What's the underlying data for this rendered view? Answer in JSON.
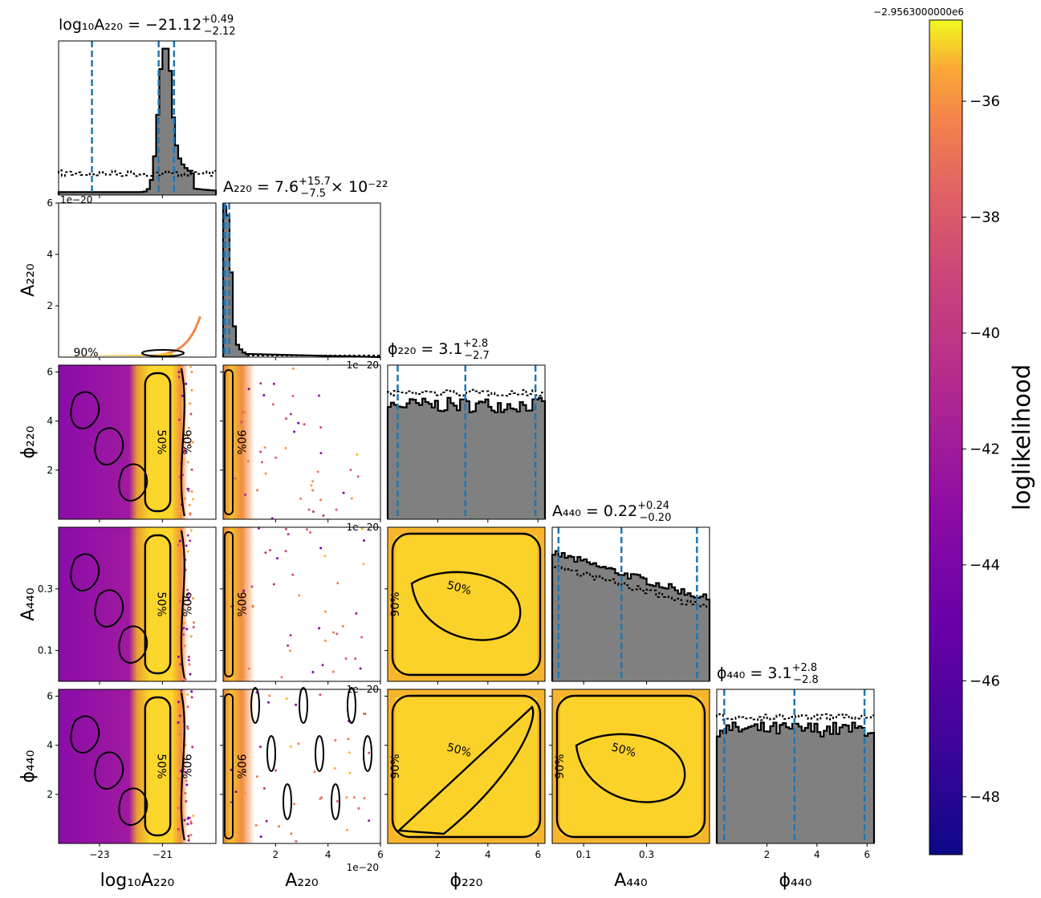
{
  "chart_data": {
    "type": "corner",
    "parameters": [
      {
        "key": "log10A220",
        "label": "log₁₀A₂₂₀",
        "range": [
          -24.3,
          -19.3
        ],
        "ticks": [
          -23,
          -21
        ],
        "tick_labels": [
          "−23",
          "−21"
        ],
        "title": {
          "prefix": "log₁₀A₂₂₀ = −21.12",
          "sup": "+0.49",
          "sub": "−2.12",
          "suffix": ""
        },
        "median": -21.12,
        "lower": -23.24,
        "upper": -20.63
      },
      {
        "key": "A220",
        "label": "A₂₂₀",
        "range": [
          0,
          6e-20
        ],
        "ticks": [
          2e-20,
          4e-20,
          6e-20
        ],
        "tick_labels": [
          "2",
          "4",
          "6"
        ],
        "offset_text": "1e−20",
        "title": {
          "prefix": "A₂₂₀ = 7.6",
          "sup": "+15.7",
          "sub": "−7.5",
          "suffix": " × 10⁻²²"
        },
        "median": 7.6e-22,
        "lower": 1e-23,
        "upper": 2.33e-21
      },
      {
        "key": "phi220",
        "label": "ϕ₂₂₀",
        "range": [
          0,
          6.28
        ],
        "ticks": [
          2,
          4,
          6
        ],
        "tick_labels": [
          "2",
          "4",
          "6"
        ],
        "title": {
          "prefix": "ϕ₂₂₀ = 3.1",
          "sup": "+2.8",
          "sub": "−2.7",
          "suffix": ""
        },
        "median": 3.1,
        "lower": 0.4,
        "upper": 5.9
      },
      {
        "key": "A440",
        "label": "A₄₄₀",
        "range": [
          0,
          0.5
        ],
        "ticks": [
          0.1,
          0.3
        ],
        "tick_labels": [
          "0.1",
          "0.3"
        ],
        "title": {
          "prefix": "A₄₄₀ = 0.22",
          "sup": "+0.24",
          "sub": "−0.20",
          "suffix": ""
        },
        "median": 0.22,
        "lower": 0.02,
        "upper": 0.46
      },
      {
        "key": "phi440",
        "label": "ϕ₄₄₀",
        "range": [
          0,
          6.28
        ],
        "ticks": [
          2,
          4,
          6
        ],
        "tick_labels": [
          "2",
          "4",
          "6"
        ],
        "title": {
          "prefix": "ϕ₄₄₀ = 3.1",
          "sup": "+2.8",
          "sub": "−2.8",
          "suffix": ""
        },
        "median": 3.1,
        "lower": 0.3,
        "upper": 5.9
      }
    ],
    "contour_labels": [
      "50%",
      "90%"
    ],
    "colorbar": {
      "label": "loglikelihood",
      "offset_text": "−2.9563000000e6",
      "range": [
        -49,
        -34.6
      ],
      "ticks": [
        -48,
        -46,
        -44,
        -42,
        -40,
        -38,
        -36
      ],
      "tick_labels": [
        "−48",
        "−46",
        "−44",
        "−42",
        "−40",
        "−38",
        "−36"
      ],
      "colormap": "plasma"
    },
    "colors": {
      "histogram_fill": "#808080",
      "quantile_line": "#1f77b4",
      "contour": "#000000"
    },
    "grid": false
  }
}
